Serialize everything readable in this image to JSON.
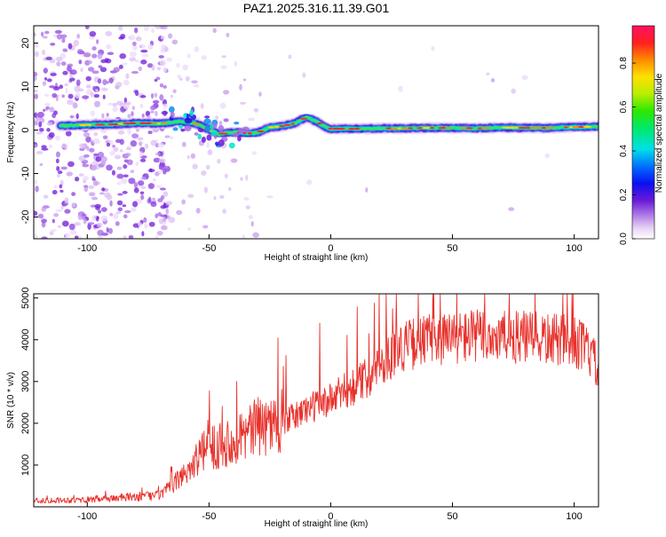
{
  "title": "PAZ1.2025.316.11.39.G01",
  "chart_data": [
    {
      "type": "heatmap",
      "name": "spectrogram",
      "xlabel": "Height of straight line (km)",
      "ylabel": "Frequency (Hz)",
      "xlim": [
        -122,
        110
      ],
      "ylim": [
        -25,
        24
      ],
      "xticks": [
        -100,
        -50,
        0,
        50,
        100
      ],
      "yticks": [
        -20,
        -10,
        0,
        10,
        20
      ],
      "ridge": {
        "x": [
          -111,
          -100,
          -90,
          -80,
          -70,
          -62,
          -56,
          -50,
          -46,
          -42,
          -38,
          -34,
          -30,
          -25,
          -20,
          -15,
          -10,
          -6,
          -2,
          0,
          10,
          20,
          30,
          40,
          50,
          60,
          70,
          80,
          90,
          100,
          110
        ],
        "freq": [
          1.0,
          1.2,
          1.3,
          1.6,
          1.5,
          2.0,
          1.6,
          0.2,
          -1.0,
          -0.6,
          -0.5,
          -0.8,
          -0.6,
          0.6,
          0.9,
          1.5,
          3.0,
          2.0,
          0.6,
          0.3,
          0.3,
          0.4,
          0.4,
          0.5,
          0.5,
          0.4,
          0.6,
          0.5,
          0.5,
          0.7,
          0.8
        ]
      },
      "colorbar": {
        "label": "Normalized spectral amplitude",
        "range": [
          0.0,
          0.97
        ],
        "ticks": [
          0.0,
          0.2,
          0.4,
          0.6,
          0.8
        ]
      }
    },
    {
      "type": "line",
      "name": "snr",
      "xlabel": "Height of straight line (km)",
      "ylabel": "SNR (10 * v/v)",
      "xlim": [
        -122,
        110
      ],
      "ylim": [
        0,
        5100
      ],
      "xticks": [
        -100,
        -50,
        0,
        50,
        100
      ],
      "yticks": [
        1000,
        2000,
        3000,
        4000,
        5000
      ],
      "color": "#e8322c",
      "trend": {
        "x": [
          -122,
          -100,
          -80,
          -70,
          -65,
          -60,
          -55,
          -50,
          -45,
          -40,
          -35,
          -30,
          -25,
          -20,
          -15,
          -10,
          -5,
          0,
          5,
          10,
          15,
          20,
          25,
          30,
          40,
          50,
          60,
          70,
          80,
          90,
          100,
          105,
          110
        ],
        "snr": [
          150,
          170,
          240,
          280,
          520,
          800,
          1150,
          1450,
          1450,
          1650,
          1750,
          1900,
          2000,
          2050,
          2150,
          2350,
          2450,
          2550,
          2750,
          2900,
          3100,
          3400,
          3650,
          3850,
          4000,
          4050,
          4100,
          4050,
          4050,
          4000,
          3950,
          3800,
          3300
        ]
      }
    }
  ]
}
